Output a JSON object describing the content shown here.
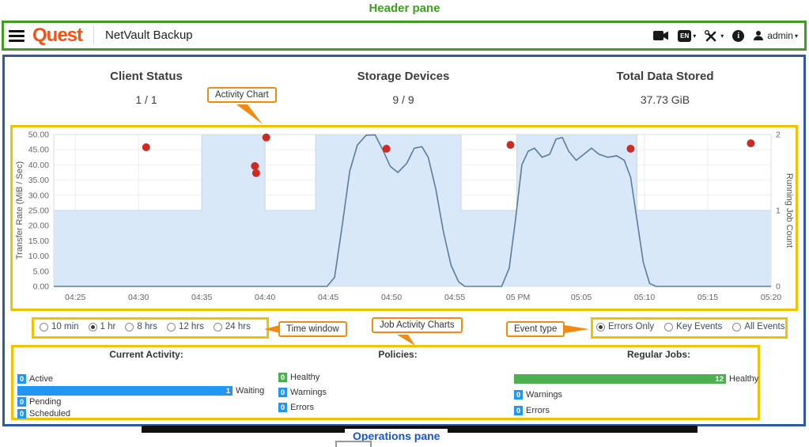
{
  "annotations": {
    "header_pane": "Header pane",
    "activity_chart": "Activity Chart",
    "time_window": "Time window",
    "job_activity_charts": "Job Activity Charts",
    "event_type": "Event type",
    "operations_pane": "Operations pane",
    "colors": {
      "green": "#3f9e22",
      "blue": "#2e5aa4",
      "yellow": "#f2c100",
      "orange": "#f08a10",
      "label_blue": "#1553d6"
    }
  },
  "header": {
    "brand": "Quest",
    "app_title": "NetVault Backup",
    "language_badge": "EN",
    "user_name": "admin"
  },
  "stats": [
    {
      "title": "Client Status",
      "value": "1 / 1"
    },
    {
      "title": "Storage Devices",
      "value": "9 / 9"
    },
    {
      "title": "Total Data Stored",
      "value": "37.73 GiB"
    }
  ],
  "time_window": {
    "options": [
      {
        "label": "10 min",
        "selected": false
      },
      {
        "label": "1 hr",
        "selected": true
      },
      {
        "label": "8 hrs",
        "selected": false
      },
      {
        "label": "12 hrs",
        "selected": false
      },
      {
        "label": "24 hrs",
        "selected": false
      }
    ]
  },
  "event_type": {
    "options": [
      {
        "label": "Errors Only",
        "selected": true
      },
      {
        "label": "Key Events",
        "selected": false
      },
      {
        "label": "All Events",
        "selected": false
      }
    ]
  },
  "chart_data": {
    "type": "line",
    "left_axis": {
      "label": "Transfer Rate (MiB / Sec)",
      "min": 0,
      "max": 50,
      "ticks": [
        "0.00",
        "5.00",
        "10.00",
        "15.00",
        "20.00",
        "25.00",
        "30.00",
        "35.00",
        "40.00",
        "45.00",
        "50.00"
      ]
    },
    "right_axis": {
      "label": "Running Job Count",
      "min": 0,
      "max": 2,
      "ticks": [
        "0",
        "1",
        "2"
      ]
    },
    "x_domain_minutes_after_4am": [
      23.3,
      80
    ],
    "x_ticks": [
      {
        "m": 25,
        "label": "04:25"
      },
      {
        "m": 30,
        "label": "04:30"
      },
      {
        "m": 35,
        "label": "04:35"
      },
      {
        "m": 40,
        "label": "04:40"
      },
      {
        "m": 45,
        "label": "04:45"
      },
      {
        "m": 50,
        "label": "04:50"
      },
      {
        "m": 55,
        "label": "04:55"
      },
      {
        "m": 60,
        "label": "05 PM"
      },
      {
        "m": 65,
        "label": "05:05"
      },
      {
        "m": 70,
        "label": "05:10"
      },
      {
        "m": 75,
        "label": "05:15"
      },
      {
        "m": 80,
        "label": "05:20"
      }
    ],
    "series": [
      {
        "name": "Transfer Rate (MiB/Sec)",
        "type": "line",
        "color": "#5a7d9c",
        "points": [
          [
            23.3,
            0
          ],
          [
            44.9,
            0
          ],
          [
            45.5,
            3
          ],
          [
            46.1,
            20
          ],
          [
            46.7,
            38
          ],
          [
            47.3,
            46.5
          ],
          [
            48.0,
            49.8
          ],
          [
            48.7,
            49.9
          ],
          [
            49.3,
            45
          ],
          [
            49.9,
            39.5
          ],
          [
            50.5,
            37.5
          ],
          [
            51.2,
            40.5
          ],
          [
            51.8,
            45.5
          ],
          [
            52.4,
            46
          ],
          [
            52.9,
            42.5
          ],
          [
            53.5,
            32
          ],
          [
            54.1,
            18
          ],
          [
            54.7,
            7
          ],
          [
            55.3,
            1.5
          ],
          [
            55.8,
            0
          ],
          [
            58.7,
            0
          ],
          [
            59.3,
            6
          ],
          [
            59.8,
            22
          ],
          [
            60.3,
            40
          ],
          [
            60.8,
            44.5
          ],
          [
            61.3,
            45.5
          ],
          [
            61.9,
            42.5
          ],
          [
            62.5,
            43.5
          ],
          [
            63.0,
            48.5
          ],
          [
            63.5,
            49
          ],
          [
            64.0,
            44.5
          ],
          [
            64.6,
            41.5
          ],
          [
            65.2,
            43.5
          ],
          [
            65.8,
            45.5
          ],
          [
            66.4,
            43.5
          ],
          [
            67.1,
            42.5
          ],
          [
            67.8,
            43
          ],
          [
            68.4,
            41.5
          ],
          [
            68.9,
            36
          ],
          [
            69.4,
            22
          ],
          [
            69.9,
            8
          ],
          [
            70.4,
            1
          ],
          [
            70.9,
            0
          ],
          [
            80,
            0
          ]
        ]
      },
      {
        "name": "Running Job Count",
        "type": "step-area",
        "axis": "right",
        "color": "#d9e8f9",
        "stroke": "#c3d9f2",
        "steps": [
          [
            23.3,
            1
          ],
          [
            35,
            2
          ],
          [
            40,
            1
          ],
          [
            44,
            2
          ],
          [
            55.5,
            1
          ],
          [
            59.9,
            2
          ],
          [
            69.4,
            1
          ],
          [
            80,
            1
          ]
        ]
      }
    ],
    "error_events": {
      "name": "Errors Only events",
      "color": "#cd2a24",
      "points": [
        [
          30.6,
          45.8
        ],
        [
          39.2,
          39.6
        ],
        [
          39.3,
          37.3
        ],
        [
          40.1,
          49.0
        ],
        [
          49.6,
          45.3
        ],
        [
          59.4,
          46.6
        ],
        [
          68.9,
          45.3
        ],
        [
          78.4,
          47.1
        ]
      ]
    }
  },
  "operations": {
    "current_activity": {
      "title": "Current Activity:",
      "rows": [
        {
          "label": "Active",
          "value": 0,
          "color": "#2196f3"
        },
        {
          "label": "Waiting",
          "value": 1,
          "color": "#2196f3"
        },
        {
          "label": "Pending",
          "value": 0,
          "color": "#2196f3"
        },
        {
          "label": "Scheduled",
          "value": 0,
          "color": "#2196f3"
        }
      ]
    },
    "policies": {
      "title": "Policies:",
      "rows": [
        {
          "label": "Healthy",
          "value": 0,
          "color": "#4caf50"
        },
        {
          "label": "Warnings",
          "value": 0,
          "color": "#2196f3"
        },
        {
          "label": "Errors",
          "value": 0,
          "color": "#2196f3"
        }
      ]
    },
    "regular_jobs": {
      "title": "Regular Jobs:",
      "rows": [
        {
          "label": "Healthy",
          "value": 12,
          "color": "#4caf50"
        },
        {
          "label": "Warnings",
          "value": 0,
          "color": "#2196f3"
        },
        {
          "label": "Errors",
          "value": 0,
          "color": "#2196f3"
        }
      ]
    }
  }
}
